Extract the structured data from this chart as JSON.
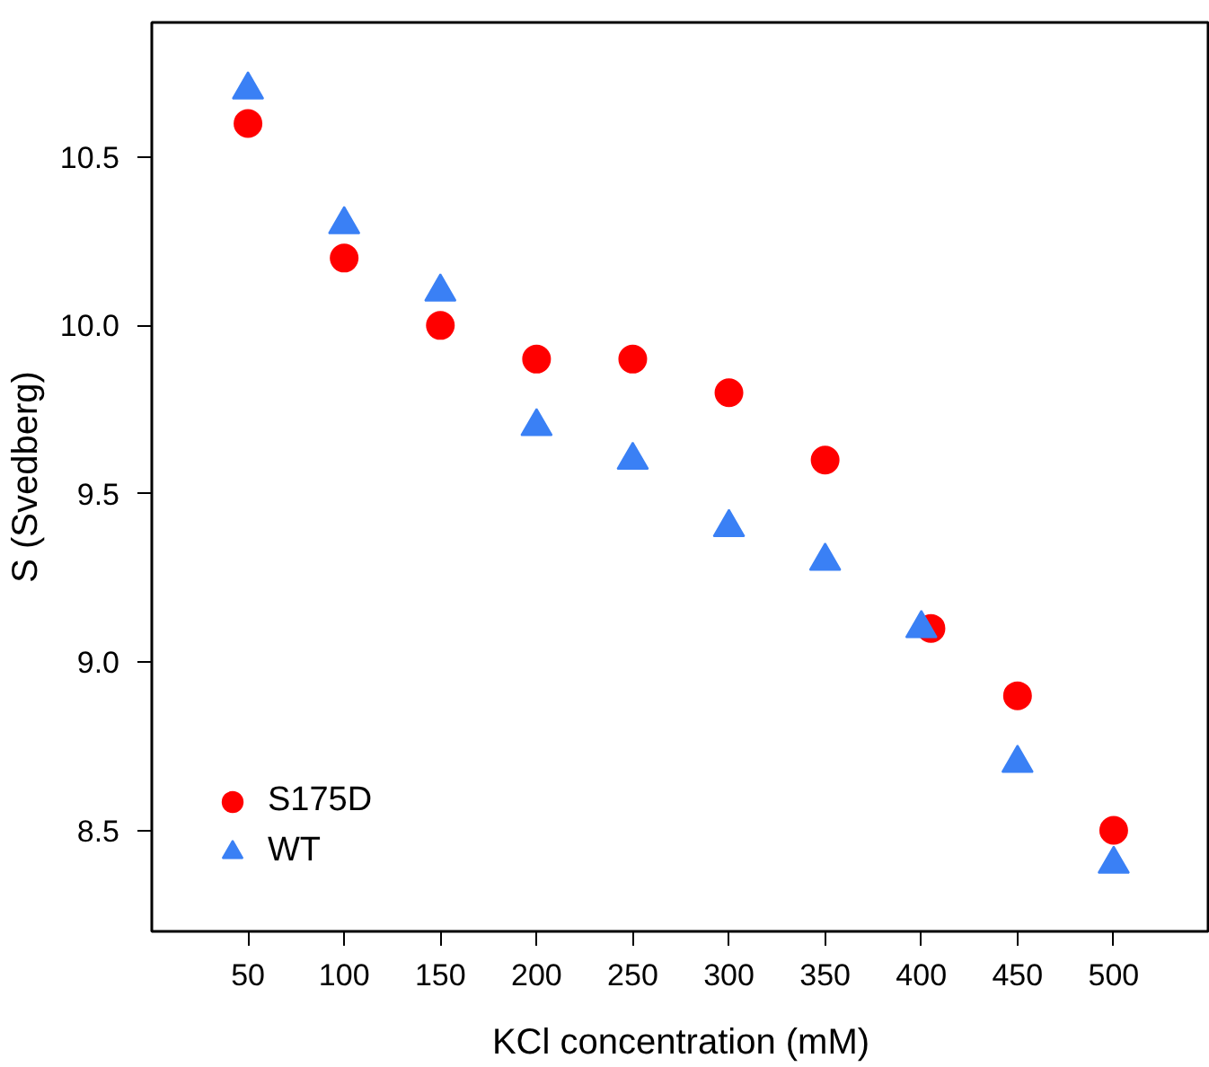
{
  "chart_data": {
    "type": "scatter",
    "xlabel": "KCl concentration (mM)",
    "ylabel": "S (Svedberg)",
    "xlim": [
      0,
      550
    ],
    "ylim": [
      8.2,
      10.9
    ],
    "xticks": [
      50,
      100,
      150,
      200,
      250,
      300,
      350,
      400,
      450,
      500
    ],
    "yticks": [
      {
        "value": 8.5,
        "label": "8.5"
      },
      {
        "value": 9.0,
        "label": "9.0"
      },
      {
        "value": 9.5,
        "label": "9.5"
      },
      {
        "value": 10.0,
        "label": "10.0"
      },
      {
        "value": 10.5,
        "label": "10.5"
      }
    ],
    "grid": false,
    "legend": "bottom left",
    "series": [
      {
        "name": "S175D",
        "color": "#ff0000",
        "marker": "circle",
        "x": [
          50,
          100,
          150,
          200,
          250,
          300,
          350,
          405,
          450,
          500
        ],
        "values": [
          10.6,
          10.2,
          10.0,
          9.9,
          9.9,
          9.8,
          9.6,
          9.1,
          8.9,
          8.5
        ]
      },
      {
        "name": "WT",
        "color": "#3a80f5",
        "marker": "triangle",
        "x": [
          50,
          100,
          150,
          200,
          250,
          300,
          350,
          400,
          450,
          500
        ],
        "values": [
          10.7,
          10.3,
          10.1,
          9.7,
          9.6,
          9.4,
          9.3,
          9.1,
          8.7,
          8.4
        ]
      }
    ]
  }
}
